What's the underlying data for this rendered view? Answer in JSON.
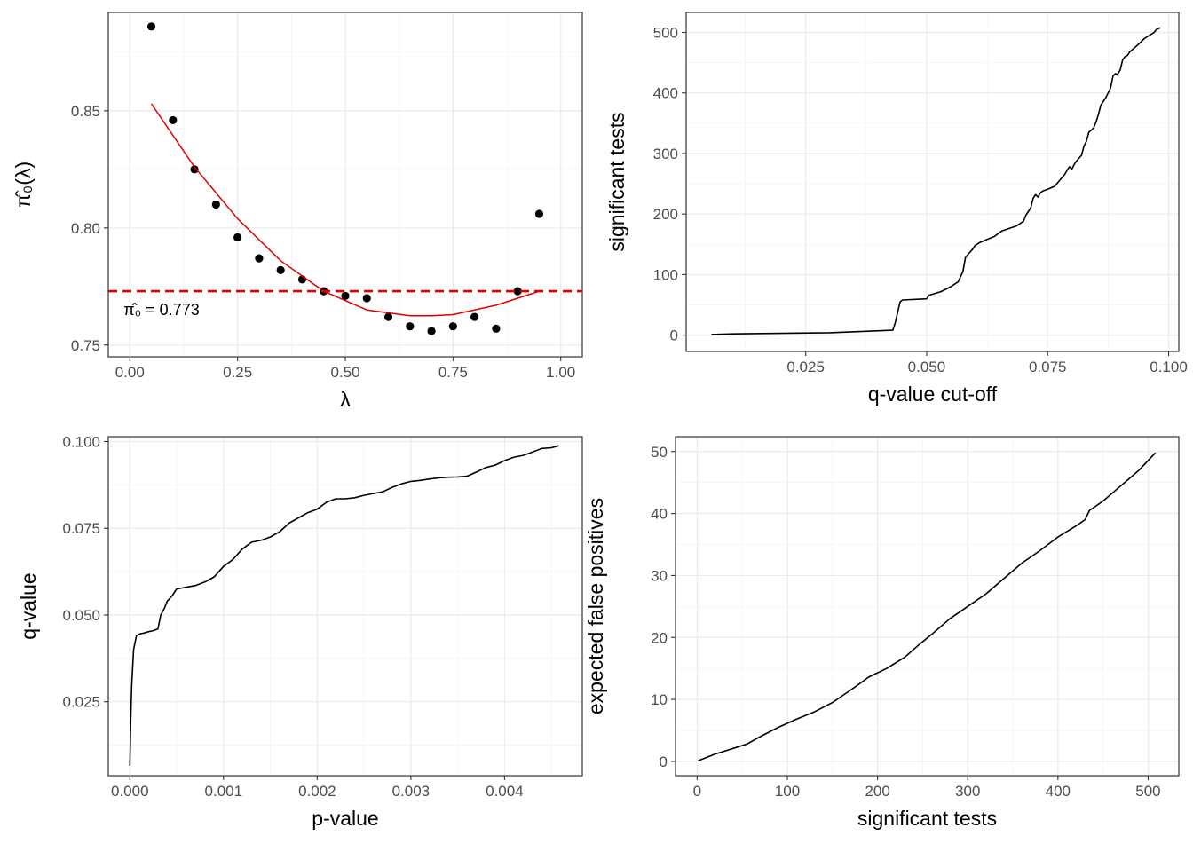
{
  "colors": {
    "points": "#000000",
    "fit_curve": "#e00000",
    "estimate_line": "#e00000",
    "lines": "#000000"
  },
  "chart_data": [
    {
      "type": "scatter",
      "xlabel": "λ",
      "ylabel": "π̂₀(λ)",
      "xlim": [
        -0.05,
        1.05
      ],
      "ylim": [
        0.745,
        0.892
      ],
      "x_ticks": [
        0,
        0.25,
        0.5,
        0.75,
        1.0
      ],
      "x_tick_labels": [
        "0.00",
        "0.25",
        "0.50",
        "0.75",
        "1.00"
      ],
      "y_ticks": [
        0.75,
        0.8,
        0.85
      ],
      "y_tick_labels": [
        "0.75",
        "0.80",
        "0.85"
      ],
      "grid": true,
      "series": [
        {
          "x": [
            0.05,
            0.1,
            0.15,
            0.2,
            0.25,
            0.3,
            0.35,
            0.4,
            0.45,
            0.5,
            0.55,
            0.6,
            0.65,
            0.7,
            0.75,
            0.8,
            0.85,
            0.9,
            0.95
          ],
          "y": [
            0.886,
            0.846,
            0.825,
            0.81,
            0.796,
            0.787,
            0.782,
            0.778,
            0.773,
            0.771,
            0.77,
            0.762,
            0.758,
            0.756,
            0.758,
            0.762,
            0.757,
            0.773,
            0.806
          ]
        },
        {
          "x": [
            0.05,
            0.15,
            0.25,
            0.35,
            0.45,
            0.55,
            0.65,
            0.7,
            0.75,
            0.85,
            0.95
          ],
          "y": [
            0.853,
            0.826,
            0.804,
            0.786,
            0.773,
            0.765,
            0.7625,
            0.7625,
            0.763,
            0.767,
            0.773
          ]
        }
      ],
      "estimate_value": 0.773,
      "annotation_prefix": "π̂₀ = ",
      "annotation_value": "0.773"
    },
    {
      "type": "line",
      "xlabel": "q-value cut-off",
      "ylabel": "significant tests",
      "xlim": [
        0.0003,
        0.1021
      ],
      "ylim": [
        -27,
        533
      ],
      "x_ticks": [
        0.025,
        0.05,
        0.075,
        0.1
      ],
      "x_tick_labels": [
        "0.025",
        "0.050",
        "0.075",
        "0.100"
      ],
      "y_ticks": [
        0,
        100,
        200,
        300,
        400,
        500
      ],
      "y_tick_labels": [
        "0",
        "100",
        "200",
        "300",
        "400",
        "500"
      ],
      "grid": true,
      "series": [
        {
          "x": [
            0.0055,
            0.01,
            0.03,
            0.043,
            0.0435,
            0.0445,
            0.045,
            0.05,
            0.0505,
            0.053,
            0.055,
            0.0565,
            0.0575,
            0.058,
            0.0585,
            0.0595,
            0.06,
            0.061,
            0.0625,
            0.064,
            0.0655,
            0.067,
            0.0685,
            0.07,
            0.0705,
            0.0715,
            0.072,
            0.0725,
            0.073,
            0.0735,
            0.074,
            0.075,
            0.0765,
            0.0775,
            0.0785,
            0.079,
            0.0795,
            0.08,
            0.0805,
            0.081,
            0.082,
            0.0825,
            0.083,
            0.0835,
            0.0845,
            0.085,
            0.0855,
            0.086,
            0.087,
            0.0875,
            0.088,
            0.0885,
            0.089,
            0.0893,
            0.0897,
            0.09,
            0.0905,
            0.091,
            0.0915,
            0.092,
            0.093,
            0.094,
            0.095,
            0.096,
            0.097,
            0.0975,
            0.0983
          ],
          "y": [
            1,
            2,
            4,
            8,
            20,
            55,
            58,
            60,
            66,
            72,
            80,
            88,
            105,
            128,
            133,
            142,
            148,
            153,
            158,
            163,
            172,
            176,
            180,
            188,
            198,
            210,
            226,
            232,
            228,
            235,
            238,
            241,
            246,
            256,
            265,
            272,
            278,
            274,
            282,
            288,
            297,
            312,
            320,
            335,
            342,
            352,
            365,
            380,
            392,
            400,
            408,
            428,
            432,
            430,
            434,
            438,
            455,
            460,
            462,
            468,
            475,
            482,
            490,
            495,
            500,
            505,
            508
          ]
        }
      ]
    },
    {
      "type": "line",
      "xlabel": "p-value",
      "ylabel": "q-value",
      "xlim": [
        -0.00023,
        0.00483
      ],
      "ylim": [
        0.0037,
        0.1014
      ],
      "x_ticks": [
        0.0,
        0.001,
        0.002,
        0.003,
        0.004
      ],
      "x_tick_labels": [
        "0.000",
        "0.001",
        "0.002",
        "0.003",
        "0.004"
      ],
      "y_ticks": [
        0.025,
        0.05,
        0.075,
        0.1
      ],
      "y_tick_labels": [
        "0.025",
        "0.050",
        "0.075",
        "0.100"
      ],
      "grid": true,
      "series": [
        {
          "x": [
            0.0,
            1e-05,
            2e-05,
            4e-05,
            7e-05,
            0.0001,
            0.00015,
            0.0002,
            0.00025,
            0.0003,
            0.00033,
            0.00037,
            0.0004,
            0.00045,
            0.0005,
            0.0006,
            0.0007,
            0.0008,
            0.0009,
            0.001,
            0.0011,
            0.0012,
            0.0013,
            0.0014,
            0.0015,
            0.0016,
            0.0017,
            0.0018,
            0.0019,
            0.002,
            0.0021,
            0.0022,
            0.0023,
            0.0024,
            0.0025,
            0.0026,
            0.0027,
            0.0028,
            0.0029,
            0.003,
            0.0031,
            0.0032,
            0.0033,
            0.0034,
            0.0035,
            0.0036,
            0.0037,
            0.0038,
            0.0039,
            0.004,
            0.0041,
            0.0042,
            0.0043,
            0.0044,
            0.0045,
            0.00458
          ],
          "y": [
            0.0065,
            0.02,
            0.03,
            0.04,
            0.044,
            0.0445,
            0.0448,
            0.0452,
            0.0455,
            0.046,
            0.05,
            0.052,
            0.054,
            0.0555,
            0.0575,
            0.058,
            0.0585,
            0.0595,
            0.061,
            0.064,
            0.066,
            0.069,
            0.071,
            0.0715,
            0.0725,
            0.074,
            0.0765,
            0.078,
            0.0795,
            0.0805,
            0.0825,
            0.0835,
            0.0835,
            0.0838,
            0.0845,
            0.085,
            0.0855,
            0.0868,
            0.0878,
            0.0885,
            0.0888,
            0.0892,
            0.0895,
            0.0897,
            0.0898,
            0.09,
            0.0912,
            0.0925,
            0.0932,
            0.0945,
            0.0955,
            0.096,
            0.097,
            0.098,
            0.0982,
            0.0988
          ]
        }
      ]
    },
    {
      "type": "line",
      "xlabel": "significant tests",
      "ylabel": "expected false positives",
      "xlim": [
        -24,
        534
      ],
      "ylim": [
        -2.3,
        52.4
      ],
      "x_ticks": [
        0,
        100,
        200,
        300,
        400,
        500
      ],
      "x_tick_labels": [
        "0",
        "100",
        "200",
        "300",
        "400",
        "500"
      ],
      "y_ticks": [
        0,
        10,
        20,
        30,
        40,
        50
      ],
      "y_tick_labels": [
        "0",
        "10",
        "20",
        "30",
        "40",
        "50"
      ],
      "grid": true,
      "series": [
        {
          "x": [
            1,
            20,
            40,
            55,
            70,
            90,
            110,
            130,
            150,
            160,
            175,
            190,
            210,
            230,
            245,
            260,
            280,
            300,
            320,
            340,
            360,
            380,
            400,
            420,
            430,
            435,
            450,
            470,
            490,
            508
          ],
          "y": [
            0.1,
            1.2,
            2.1,
            2.8,
            4.0,
            5.5,
            6.8,
            8.0,
            9.5,
            10.5,
            12.0,
            13.6,
            15.0,
            16.8,
            18.7,
            20.5,
            23.0,
            25.0,
            27.0,
            29.5,
            32.0,
            34.0,
            36.2,
            38.0,
            39.0,
            40.5,
            42.0,
            44.5,
            47.0,
            49.8
          ]
        }
      ]
    }
  ]
}
